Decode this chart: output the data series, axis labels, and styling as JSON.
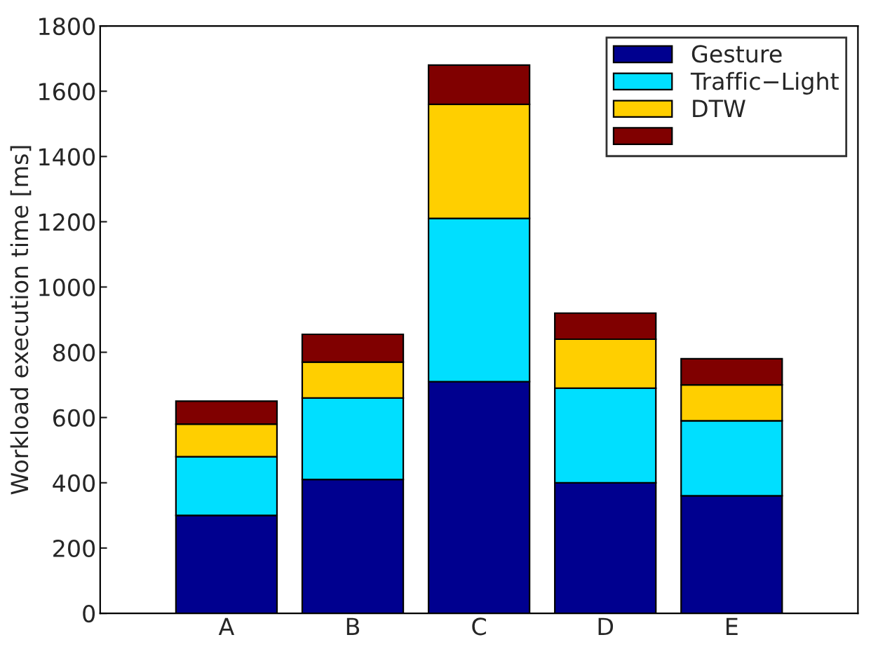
{
  "chart_data": {
    "type": "bar",
    "stacked": true,
    "ylabel": "Workload execution time [ms]",
    "categories": [
      "A",
      "B",
      "C",
      "D",
      "E"
    ],
    "series": [
      {
        "name": "Gesture",
        "color": "#00008f",
        "values": [
          300,
          410,
          710,
          400,
          360
        ]
      },
      {
        "name": "Traffic−Light",
        "color": "#00dfff",
        "values": [
          180,
          250,
          500,
          290,
          230
        ]
      },
      {
        "name": "DTW",
        "color": "#ffcf00",
        "values": [
          100,
          110,
          350,
          150,
          110
        ]
      },
      {
        "color": "#800000",
        "values": [
          70,
          85,
          120,
          80,
          80
        ]
      }
    ],
    "ylim": [
      0,
      1800
    ],
    "yticks": [
      0,
      200,
      400,
      600,
      800,
      1000,
      1200,
      1400,
      1600,
      1800
    ],
    "grid": false,
    "legend": "top right"
  }
}
